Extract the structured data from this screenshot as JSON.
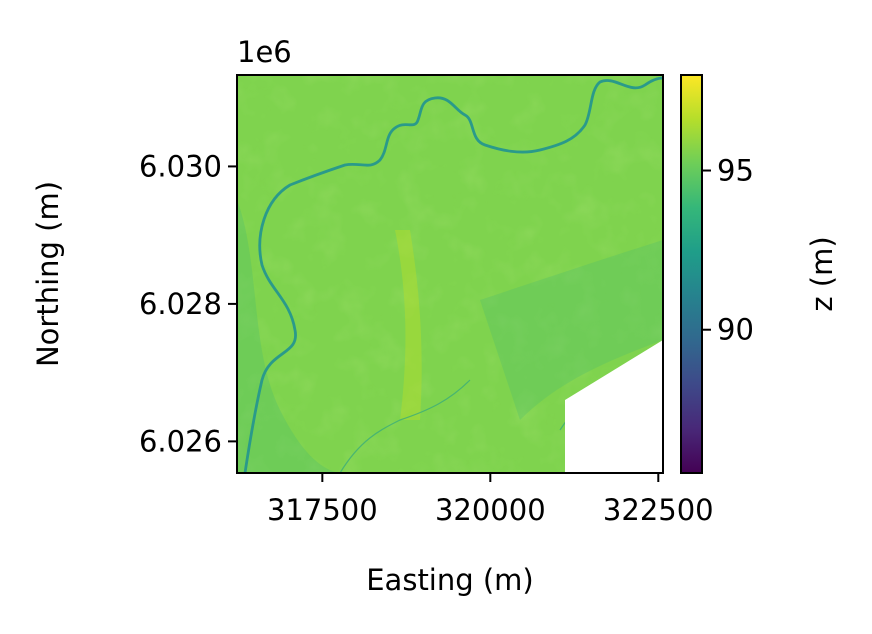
{
  "chart_data": {
    "type": "heatmap",
    "title": "",
    "xlabel": "Easting (m)",
    "ylabel": "Northing (m)",
    "offset_label": "1e6",
    "xlim": [
      316230,
      322570
    ],
    "ylim": [
      6025540,
      6031330
    ],
    "x_ticks": [
      317500,
      320000,
      322500
    ],
    "x_tick_labels": [
      "317500",
      "320000",
      "322500"
    ],
    "y_ticks": [
      6026000,
      6028000,
      6030000
    ],
    "y_tick_labels": [
      "6.026",
      "6.028",
      "6.030"
    ],
    "colorbar": {
      "label": "z (m)",
      "colormap": "viridis",
      "range": [
        85.5,
        98.0
      ],
      "ticks": [
        90,
        95
      ],
      "tick_labels": [
        "90",
        "95"
      ]
    },
    "surface": {
      "typical_z_range": [
        93.5,
        97.0
      ],
      "no_data_region": "lower-right corner (white)",
      "river_z": 91.5
    },
    "colors": {
      "viridis": [
        "#440154",
        "#482878",
        "#3e4989",
        "#31688e",
        "#26828e",
        "#1f9e89",
        "#35b779",
        "#6ece58",
        "#b5de2b",
        "#fde725"
      ]
    }
  }
}
